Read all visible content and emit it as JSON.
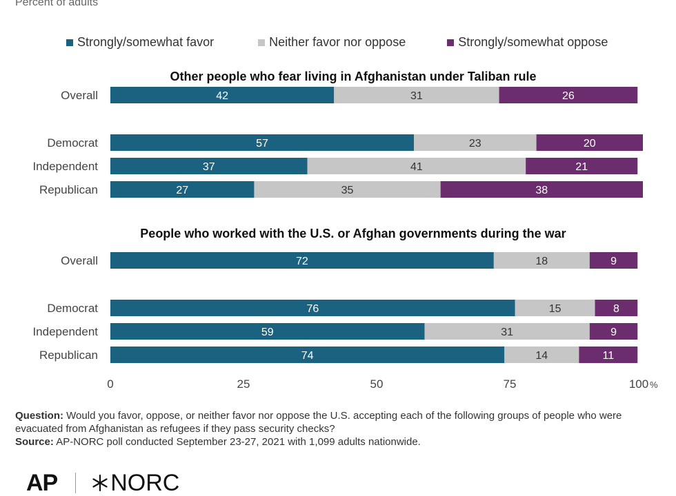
{
  "subtitle": "Percent of adults",
  "legend": [
    {
      "label": "Strongly/somewhat favor",
      "color": "#1b6281"
    },
    {
      "label": "Neither favor nor oppose",
      "color": "#c6c6c6"
    },
    {
      "label": "Strongly/somewhat oppose",
      "color": "#6b2d6e"
    }
  ],
  "chart_data": {
    "type": "bar",
    "orientation": "horizontal",
    "stacked": true,
    "x_ticks": [
      "0",
      "25",
      "50",
      "75",
      "100"
    ],
    "x_unit": "%",
    "xlim": [
      0,
      100
    ],
    "gridlines": false,
    "groups": [
      {
        "title": "Other people who fear living in Afghanistan under Taliban rule",
        "rows": [
          {
            "label": "Overall",
            "values": [
              42,
              31,
              26
            ]
          },
          {
            "label": "Democrat",
            "values": [
              57,
              23,
              20
            ]
          },
          {
            "label": "Independent",
            "values": [
              37,
              41,
              21
            ]
          },
          {
            "label": "Republican",
            "values": [
              27,
              35,
              38
            ]
          }
        ]
      },
      {
        "title": "People who worked with the U.S. or Afghan governments during the war",
        "rows": [
          {
            "label": "Overall",
            "values": [
              72,
              18,
              9
            ]
          },
          {
            "label": "Democrat",
            "values": [
              76,
              15,
              8
            ]
          },
          {
            "label": "Independent",
            "values": [
              59,
              31,
              9
            ]
          },
          {
            "label": "Republican",
            "values": [
              74,
              14,
              11
            ]
          }
        ]
      }
    ]
  },
  "footnote": {
    "question_label": "Question:",
    "question_text": " Would you favor, oppose, or neither favor nor oppose the U.S. accepting each of the following groups of people who were evacuated from Afghanistan as refugees if they pass security checks?",
    "source_label": "Source:",
    "source_text": " AP-NORC poll conducted September 23-27, 2021 with 1,099 adults nationwide."
  },
  "logos": {
    "ap": "AP",
    "norc": "NORC"
  }
}
